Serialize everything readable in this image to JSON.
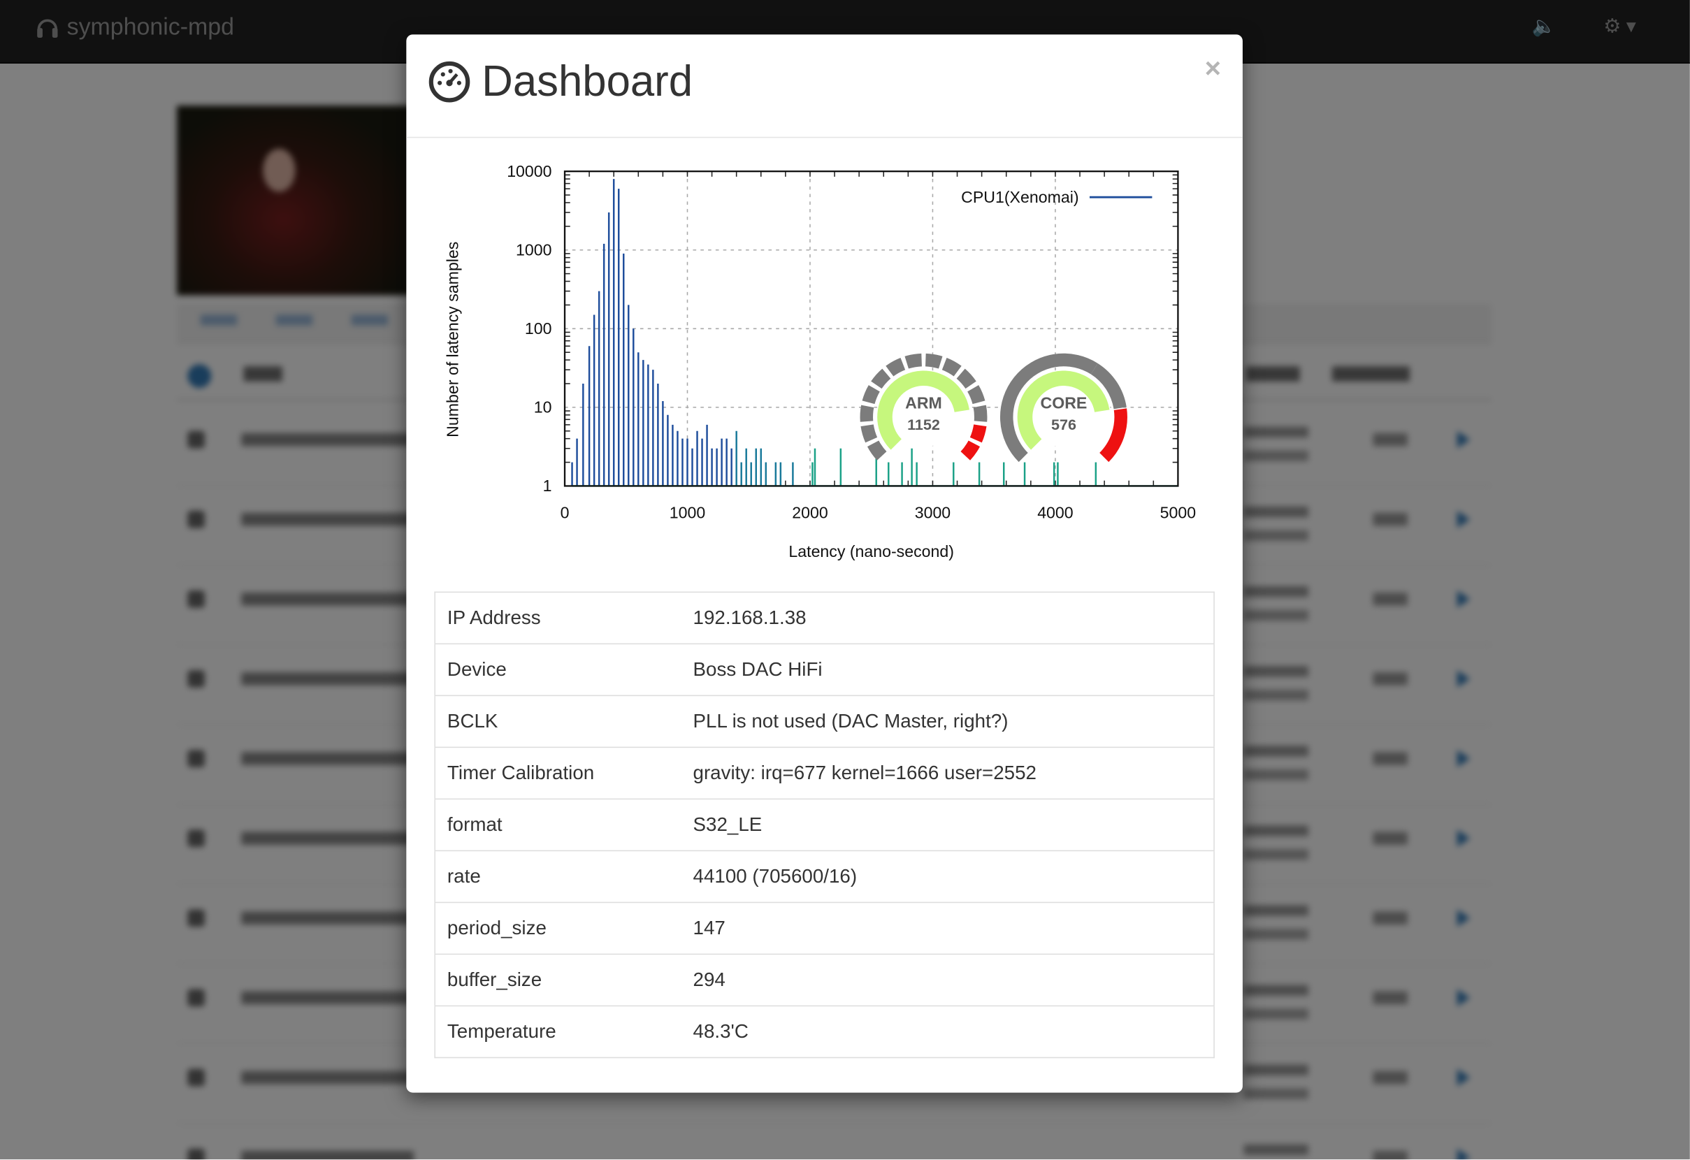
{
  "app": {
    "brand": "symphonic-mpd"
  },
  "modal": {
    "title": "Dashboard",
    "close_label": "×",
    "info_rows": [
      {
        "key": "IP Address",
        "value": "192.168.1.38"
      },
      {
        "key": "Device",
        "value": "Boss DAC HiFi"
      },
      {
        "key": "BCLK",
        "value": "PLL is not used (DAC Master, right?)"
      },
      {
        "key": "Timer Calibration",
        "value": "gravity: irq=677 kernel=1666 user=2552"
      },
      {
        "key": "format",
        "value": "S32_LE"
      },
      {
        "key": "rate",
        "value": "44100 (705600/16)"
      },
      {
        "key": "period_size",
        "value": "147"
      },
      {
        "key": "buffer_size",
        "value": "294"
      },
      {
        "key": "Temperature",
        "value": "48.3'C"
      }
    ],
    "gauges": [
      {
        "label": "ARM",
        "value": "1152",
        "fill_fraction": 0.8
      },
      {
        "label": "CORE",
        "value": "576",
        "fill_fraction": 0.8
      }
    ]
  },
  "chart_data": {
    "type": "bar",
    "title": "",
    "xlabel": "Latency (nano-second)",
    "ylabel": "Number of latency samples",
    "xlim": [
      0,
      5000
    ],
    "ylim": [
      1,
      10000
    ],
    "y_scale": "log",
    "x_ticks": [
      "0",
      "1000",
      "2000",
      "3000",
      "4000",
      "5000"
    ],
    "y_ticks": [
      "1",
      "10",
      "100",
      "1000",
      "10000"
    ],
    "grid": true,
    "legend": "top-right",
    "series": [
      {
        "name": "CPU1(Xenomai)",
        "color": "#1f4e9c",
        "points": [
          [
            60,
            2
          ],
          [
            100,
            4
          ],
          [
            150,
            20
          ],
          [
            200,
            60
          ],
          [
            240,
            150
          ],
          [
            280,
            300
          ],
          [
            320,
            1200
          ],
          [
            360,
            3000
          ],
          [
            400,
            8000
          ],
          [
            440,
            6000
          ],
          [
            480,
            900
          ],
          [
            520,
            200
          ],
          [
            560,
            100
          ],
          [
            600,
            50
          ],
          [
            640,
            40
          ],
          [
            680,
            35
          ],
          [
            720,
            30
          ],
          [
            760,
            20
          ],
          [
            800,
            12
          ],
          [
            840,
            8
          ],
          [
            880,
            6
          ],
          [
            920,
            5
          ],
          [
            960,
            4
          ],
          [
            1000,
            4
          ],
          [
            1040,
            3
          ],
          [
            1080,
            5
          ],
          [
            1120,
            4
          ],
          [
            1160,
            6
          ],
          [
            1200,
            3
          ],
          [
            1240,
            3
          ],
          [
            1280,
            4
          ],
          [
            1320,
            4
          ],
          [
            1360,
            3
          ],
          [
            1400,
            5
          ],
          [
            1440,
            2
          ],
          [
            1480,
            3
          ],
          [
            1520,
            2
          ],
          [
            1560,
            3
          ],
          [
            1600,
            3
          ],
          [
            1640,
            2
          ],
          [
            1720,
            2
          ],
          [
            1760,
            2
          ],
          [
            1860,
            2
          ],
          [
            2020,
            2
          ],
          [
            2040,
            3
          ],
          [
            2250,
            3
          ],
          [
            2540,
            3
          ],
          [
            2640,
            2
          ],
          [
            2750,
            2
          ],
          [
            2830,
            3
          ],
          [
            2870,
            2
          ],
          [
            3170,
            2
          ],
          [
            3380,
            2
          ],
          [
            3580,
            2
          ],
          [
            3750,
            2
          ],
          [
            3990,
            2
          ],
          [
            4020,
            2
          ],
          [
            4330,
            2
          ]
        ]
      }
    ]
  }
}
